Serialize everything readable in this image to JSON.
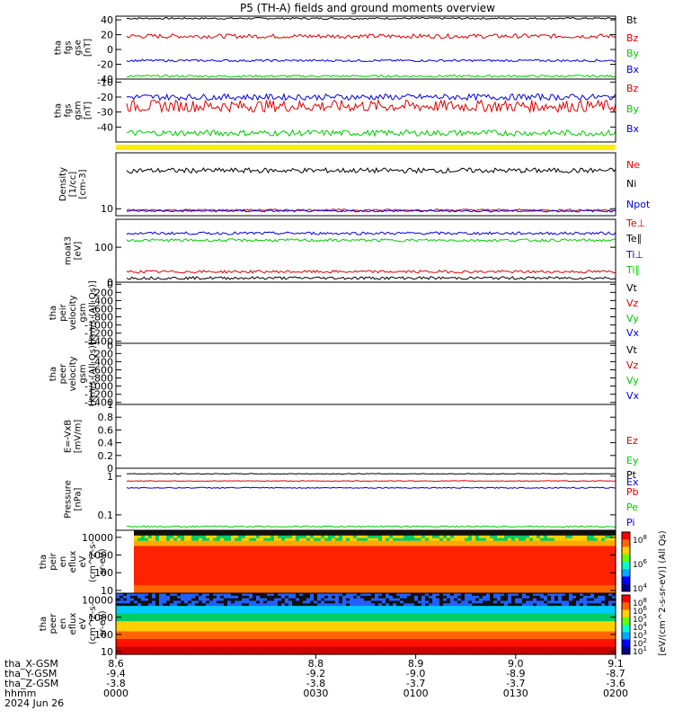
{
  "title": "P5 (TH-A) fields and ground moments overview",
  "colors": {
    "black": "#000000",
    "red": "#e00000",
    "blue": "#0000e0",
    "green": "#00cc00",
    "yellow": "#ffee00"
  },
  "chart_data": [
    {
      "id": "fgs_gse",
      "type": "line",
      "ylabel": [
        "tha",
        "fgs",
        "gse",
        "[nT]"
      ],
      "ylim": [
        -40,
        45
      ],
      "yticks": [
        -40,
        -20,
        0,
        20,
        40
      ],
      "series": [
        {
          "name": "Bt",
          "color": "black",
          "level": 42,
          "noise": 1.2
        },
        {
          "name": "Bz",
          "color": "red",
          "level": 18,
          "noise": 3
        },
        {
          "name": "By",
          "color": "green",
          "level": -36,
          "noise": 1.5
        },
        {
          "name": "Bx",
          "color": "blue",
          "level": -15,
          "noise": 1.5
        }
      ],
      "legend": [
        "Bt",
        "Bz",
        "By",
        "Bx"
      ]
    },
    {
      "id": "fgs_gsm",
      "type": "line",
      "ylabel": [
        "tha",
        "fgs",
        "gsm",
        "[nT]"
      ],
      "ylim": [
        -50,
        -8
      ],
      "yticks": [
        -40,
        -30,
        -20,
        -10
      ],
      "series": [
        {
          "name": "Bz",
          "color": "red",
          "level": -26,
          "noise": 4
        },
        {
          "name": "By",
          "color": "green",
          "level": -44,
          "noise": 2
        },
        {
          "name": "Bx",
          "color": "blue",
          "level": -20,
          "noise": 2
        }
      ],
      "legend": [
        "Bz",
        "By",
        "Bx"
      ]
    },
    {
      "id": "density",
      "type": "line",
      "ylabel": [
        "Density",
        "[1/cc]",
        "[cm-3]"
      ],
      "ylim": [
        8,
        60
      ],
      "log": true,
      "yticks": [
        10
      ],
      "series": [
        {
          "name": "Ne",
          "color": "black",
          "level": 34,
          "noise": 0.08
        },
        {
          "name": "Ni",
          "color": "red",
          "level": 9.6,
          "noise": 0.03
        },
        {
          "name": "Npot",
          "color": "blue",
          "level": 9.3,
          "noise": 0.03
        }
      ],
      "legend": [
        "Ne",
        "Ni",
        "Npot"
      ]
    },
    {
      "id": "temp",
      "type": "line",
      "ylabel": [
        "moat3",
        "[eV]"
      ],
      "ylim": [
        0,
        180
      ],
      "yticks": [
        0,
        100
      ],
      "series": [
        {
          "name": "Te⊥",
          "color": "blue",
          "level": 140,
          "noise": 4
        },
        {
          "name": "Te∥",
          "color": "green",
          "level": 120,
          "noise": 4
        },
        {
          "name": "Ti⊥",
          "color": "red",
          "level": 30,
          "noise": 4
        },
        {
          "name": "Ti∥",
          "color": "black",
          "level": 12,
          "noise": 4
        }
      ],
      "legend": [
        "Te⊥",
        "Te∥",
        "Ti⊥",
        "Ti∥"
      ]
    },
    {
      "id": "peir_vel",
      "type": "line",
      "ylabel": [
        "tha",
        "peir",
        "velocity",
        "gsm",
        "[km/s (All Qs)]"
      ],
      "ylim": [
        -1450,
        50
      ],
      "yticks": [
        0,
        -200,
        -400,
        -600,
        -800,
        -1000,
        -1200,
        -1400
      ],
      "series": [],
      "legend": [
        "Vt",
        "Vz",
        "Vy",
        "Vx"
      ]
    },
    {
      "id": "peer_vel",
      "type": "line",
      "ylabel": [
        "tha",
        "peer",
        "velocity",
        "gsm",
        "[km/s (All Qs)]"
      ],
      "ylim": [
        -1450,
        50
      ],
      "yticks": [
        0,
        -200,
        -400,
        -600,
        -800,
        -1000,
        -1200,
        -1400
      ],
      "series": [],
      "legend": [
        "Vt",
        "Vz",
        "Vy",
        "Vx"
      ]
    },
    {
      "id": "efield",
      "type": "line",
      "ylabel": [
        "E=-VxB",
        "[mV/m]"
      ],
      "ylim": [
        0,
        1
      ],
      "yticks": [
        0.0,
        0.2,
        0.4,
        0.6,
        0.8,
        1.0
      ],
      "series": [],
      "legend": [
        "Ez",
        "Ey",
        "Ex"
      ]
    },
    {
      "id": "pressure",
      "type": "line",
      "ylabel": [
        "Pressure",
        "[nPa]"
      ],
      "ylim": [
        0.04,
        1.6
      ],
      "log": true,
      "yticks": [
        0.1,
        1.0
      ],
      "series": [
        {
          "name": "Pt",
          "color": "black",
          "level": 1.15,
          "noise": 0.02
        },
        {
          "name": "Pb",
          "color": "red",
          "level": 0.75,
          "noise": 0.02
        },
        {
          "name": "Pe",
          "color": "blue",
          "level": 0.5,
          "noise": 0.03
        },
        {
          "name": "Pi",
          "color": "green",
          "level": 0.05,
          "noise": 0.04
        }
      ],
      "legend": [
        "Pt",
        "Pb",
        "Pe",
        "Pi"
      ]
    },
    {
      "id": "peir_eflux",
      "type": "heatmap",
      "ylabel": [
        "tha",
        "peir",
        "en",
        "eflux",
        "eV",
        "(cm^2-s-",
        "sr-eV)"
      ],
      "ylim": [
        7,
        25000
      ],
      "log": true,
      "yticks": [
        10,
        100,
        1000,
        10000
      ]
    },
    {
      "id": "peer_eflux",
      "type": "heatmap",
      "ylabel": [
        "tha",
        "peer",
        "en",
        "eflux",
        "eV",
        "(cm^2-s-",
        "sr-eV)"
      ],
      "ylim": [
        7,
        25000
      ],
      "log": true,
      "yticks": [
        10,
        100,
        1000,
        10000
      ]
    }
  ],
  "colorbar": {
    "label": "[eV/(cm^2-s-sr-eV)] (All Qs)",
    "upper_ticks": [
      "10^8",
      "10^6",
      "10^4"
    ],
    "lower_ticks": [
      "10^8",
      "10^6",
      "10^5",
      "10^4",
      "10^3",
      "10^2",
      "10^1"
    ]
  },
  "xaxis": {
    "positions": [
      8.6,
      8.8,
      8.9,
      9.0,
      9.1
    ],
    "rows": [
      {
        "label": "tha_X-GSM",
        "values": [
          "8.6",
          "8.8",
          "8.9",
          "9.0",
          "9.1"
        ]
      },
      {
        "label": "tha_Y-GSM",
        "values": [
          "-9.4",
          "-9.2",
          "-9.0",
          "-8.9",
          "-8.7"
        ]
      },
      {
        "label": "tha_Z-GSM",
        "values": [
          "-3.8",
          "-3.8",
          "-3.7",
          "-3.7",
          "-3.6"
        ]
      },
      {
        "label": "hhmm",
        "values": [
          "0000",
          "0030",
          "0100",
          "0130",
          "0200"
        ]
      }
    ],
    "date": "2024 Jun 26"
  }
}
